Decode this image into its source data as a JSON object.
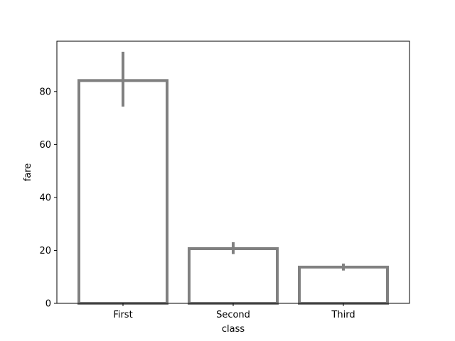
{
  "chart_data": {
    "type": "bar",
    "categories": [
      "First",
      "Second",
      "Third"
    ],
    "values": [
      84.15,
      20.66,
      13.68
    ],
    "error_bars": [
      {
        "low": 74.3,
        "high": 95.0
      },
      {
        "low": 18.6,
        "high": 23.1
      },
      {
        "low": 12.4,
        "high": 15.0
      }
    ],
    "xlabel": "class",
    "ylabel": "fare",
    "ylim": [
      0,
      99
    ],
    "yticks": [
      0,
      20,
      40,
      60,
      80
    ],
    "grid": false,
    "bar_fill": "#ffffff",
    "bar_edge_color": "#808080",
    "error_bar_color": "#808080"
  }
}
